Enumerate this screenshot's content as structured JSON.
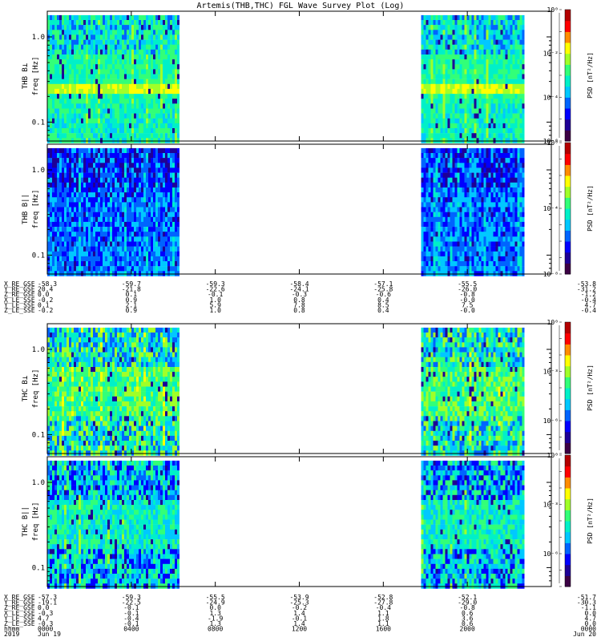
{
  "title": "Artemis(THB,THC) FGL Wave Survey Plot (Log)",
  "cbar_label": "PSD [nT²/Hz]",
  "ylabel_sub": "freq [Hz]",
  "colors": [
    "#ffffff",
    "#3c0044",
    "#1e0096",
    "#0000ff",
    "#0064ff",
    "#00c8ff",
    "#00f0c8",
    "#32ff78",
    "#a0ff28",
    "#ffff00",
    "#ff8c00",
    "#ff0000",
    "#b40000"
  ],
  "chart_data": [
    {
      "type": "heatmap",
      "name": "THB B⊥",
      "ylabel": "THB B⊥",
      "ylim": [
        0.06,
        2.0
      ],
      "yscale": "log",
      "yticks": [
        {
          "v": 0.1,
          "label": "0.1"
        },
        {
          "v": 1.0,
          "label": "1.0"
        }
      ],
      "data_spans_hours": [
        [
          0,
          6.4
        ],
        [
          17.8,
          22.8
        ]
      ],
      "psd_range_log10": [
        -6,
        0
      ],
      "cbar_ticks": [
        {
          "v": 0,
          "label": "10⁰"
        },
        {
          "v": -2,
          "label": "10⁻²"
        },
        {
          "v": -4,
          "label": "10⁻⁴"
        },
        {
          "v": -6,
          "label": "10⁻⁶"
        }
      ]
    },
    {
      "type": "heatmap",
      "name": "THB B||",
      "ylabel": "THB B||",
      "ylim": [
        0.06,
        2.0
      ],
      "yscale": "log",
      "yticks": [
        {
          "v": 0.1,
          "label": "0.1"
        },
        {
          "v": 1.0,
          "label": "1.0"
        }
      ],
      "data_spans_hours": [
        [
          0,
          6.4
        ],
        [
          17.8,
          22.8
        ]
      ],
      "psd_range_log10": [
        -8,
        0
      ],
      "cbar_ticks": [
        {
          "v": 0,
          "label": "10⁰"
        },
        {
          "v": -4,
          "label": "10⁻⁴"
        },
        {
          "v": -8,
          "label": "10⁻⁸"
        }
      ]
    },
    {
      "type": "heatmap",
      "name": "THC B⊥",
      "ylabel": "THC B⊥",
      "ylim": [
        0.06,
        2.0
      ],
      "yscale": "log",
      "yticks": [
        {
          "v": 0.1,
          "label": "0.1"
        },
        {
          "v": 1.0,
          "label": "1.0"
        }
      ],
      "data_spans_hours": [
        [
          0,
          6.4
        ],
        [
          17.8,
          22.8
        ]
      ],
      "psd_range_log10": [
        -8,
        0
      ],
      "cbar_ticks": [
        {
          "v": 0,
          "label": "10⁰"
        },
        {
          "v": -3,
          "label": "10⁻³"
        },
        {
          "v": -6,
          "label": "10⁻⁶"
        }
      ]
    },
    {
      "type": "heatmap",
      "name": "THC B||",
      "ylabel": "THC B||",
      "ylim": [
        0.06,
        2.0
      ],
      "yscale": "log",
      "yticks": [
        {
          "v": 0.1,
          "label": "0.1"
        },
        {
          "v": 1.0,
          "label": "1.0"
        }
      ],
      "data_spans_hours": [
        [
          0,
          6.4
        ],
        [
          17.8,
          22.8
        ]
      ],
      "psd_range_log10": [
        -8,
        0
      ],
      "cbar_ticks": [
        {
          "v": 0,
          "label": "10⁰"
        },
        {
          "v": -3,
          "label": "10⁻³"
        },
        {
          "v": -6,
          "label": "10⁻⁶"
        }
      ]
    }
  ],
  "ephem_thb": {
    "labels": [
      "X_RE_GSE",
      "Y_RE_GSE",
      "Z_RE_GSE",
      "X_LE_SSE",
      "Y_LE_SSE",
      "Z_LE_SSE"
    ],
    "columns": [
      [
        "-58.3",
        "20.4",
        "0.0",
        "-0.2",
        "0.1",
        "-0.2"
      ],
      [
        "-59.7",
        "-21.8",
        "0.1",
        "0.9",
        "2.1",
        "0.9"
      ],
      [
        "-59.3",
        "-22.6",
        "-0.1",
        "1.0",
        "5.9",
        "1.0"
      ],
      [
        "-58.4",
        "-24.1",
        "-0.3",
        "0.8",
        "7.8",
        "0.8"
      ],
      [
        "-57.1",
        "-25.8",
        "-0.6",
        "0.4",
        "8.5",
        "0.4"
      ],
      [
        "-55.5",
        "-26.0",
        "-0.8",
        "-0.0",
        "7.5",
        "-0.0"
      ],
      [
        "-53.8",
        "-31.2",
        "-1.2",
        "-0.4",
        "4.7",
        "-0.4"
      ]
    ]
  },
  "ephem_thc": {
    "labels": [
      "X_RE_GSE",
      "Y_RE_GSE",
      "Z_RE_GSE",
      "X_LE_SSE",
      "Y_LE_SSE",
      "Z_LE_SSE",
      "hhmm",
      "2019"
    ],
    "columns": [
      [
        "-57.3",
        "-19.1",
        "0.0",
        "-0.3",
        "4.7",
        "-0.3",
        "0000",
        "Jun 19"
      ],
      [
        "-59.3",
        "-22.5",
        "-0.1",
        "-0.1",
        "-0.4",
        "-0.1",
        "0400",
        ""
      ],
      [
        "-55.5",
        "-24.9",
        "0.0",
        "1.3",
        "-1.9",
        "1.3",
        "0800",
        ""
      ],
      [
        "-53.9",
        "-25.3",
        "-0.2",
        "1.4",
        "-0.1",
        "1.4",
        "1200",
        ""
      ],
      [
        "-52.8",
        "-27.8",
        "-0.4",
        "1.1",
        "1.8",
        "1.1",
        "1600",
        ""
      ],
      [
        "-52.1",
        "-29.0",
        "-0.8",
        "0.6",
        "3.6",
        "0.6",
        "2000",
        ""
      ],
      [
        "-51.7",
        "-30.3",
        "-1.1",
        "0.0",
        "4.7",
        "0.0",
        "0000",
        "Jun 20"
      ]
    ]
  }
}
